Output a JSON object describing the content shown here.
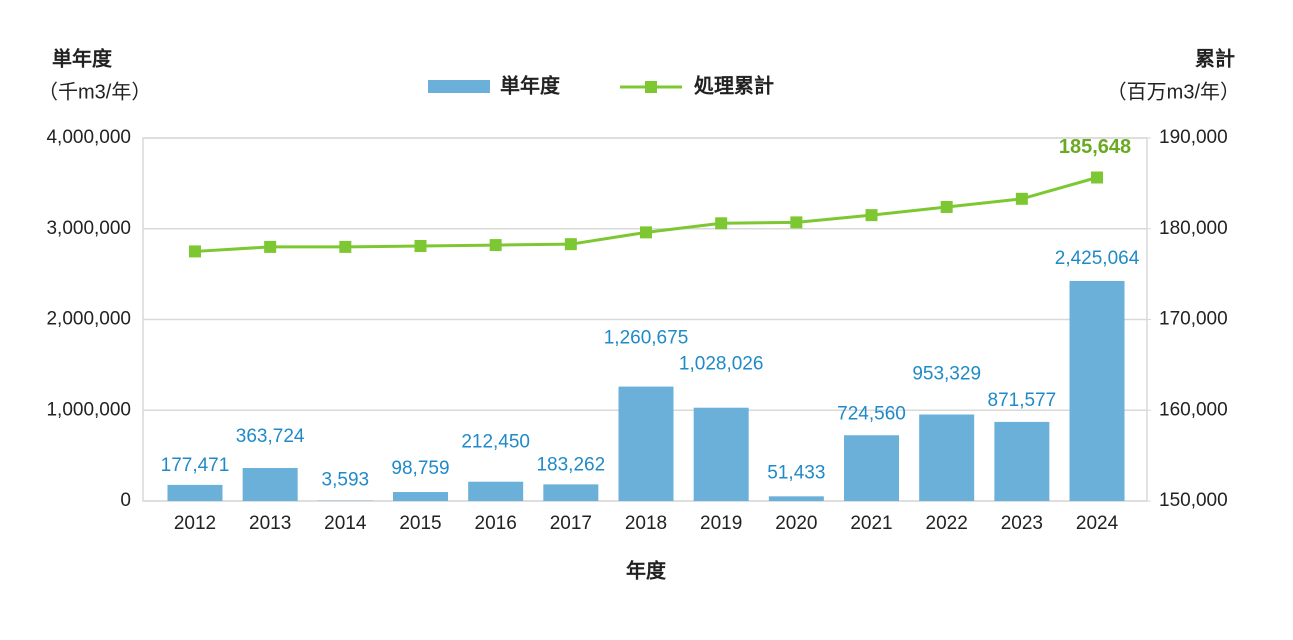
{
  "chart_data": {
    "type": "bar-line",
    "y_label": "単年度",
    "y_unit": "（千m3/年）",
    "y2_label": "累計",
    "y2_unit": "（百万m3/年）",
    "x_label": "年度",
    "categories": [
      "2012",
      "2013",
      "2014",
      "2015",
      "2016",
      "2017",
      "2018",
      "2019",
      "2020",
      "2021",
      "2022",
      "2023",
      "2024"
    ],
    "ylim": [
      0,
      4000000
    ],
    "yticks": [
      0,
      {
        "value": 1000000,
        "label": "1,000,000"
      },
      {
        "value": 2000000,
        "label": "2,000,000"
      },
      {
        "value": 3000000,
        "label": "3,000,000"
      },
      {
        "value": 4000000,
        "label": "4,000,000"
      }
    ],
    "y2lim": [
      150000,
      190000
    ],
    "y2ticks": [
      {
        "value": 150000,
        "label": "150,000"
      },
      {
        "value": 160000,
        "label": "160,000"
      },
      {
        "value": 170000,
        "label": "170,000"
      },
      {
        "value": 180000,
        "label": "180,000"
      },
      {
        "value": 190000,
        "label": "190,000"
      }
    ],
    "grid": true,
    "series": [
      {
        "name": "単年度",
        "type": "bar",
        "color": "#6ab0d9",
        "values": [
          177471,
          363724,
          3593,
          98759,
          212450,
          183262,
          1260675,
          1028026,
          51433,
          724560,
          953329,
          871577,
          2425064
        ],
        "value_labels": [
          "177,471",
          "363,724",
          "3,593",
          "98,759",
          "212,450",
          "183,262",
          "1,260,675",
          "1,028,026",
          "51,433",
          "724,560",
          "953,329",
          "871,577",
          "2,425,064"
        ]
      },
      {
        "name": "処理累計",
        "type": "line",
        "axis": "y2",
        "color": "#7dc832",
        "values": [
          177500,
          178000,
          178000,
          178100,
          178200,
          178300,
          179600,
          180600,
          180700,
          181500,
          182400,
          183300,
          185648
        ],
        "value_labels": [
          null,
          null,
          null,
          null,
          null,
          null,
          null,
          null,
          null,
          null,
          null,
          null,
          "185,648"
        ]
      }
    ]
  }
}
